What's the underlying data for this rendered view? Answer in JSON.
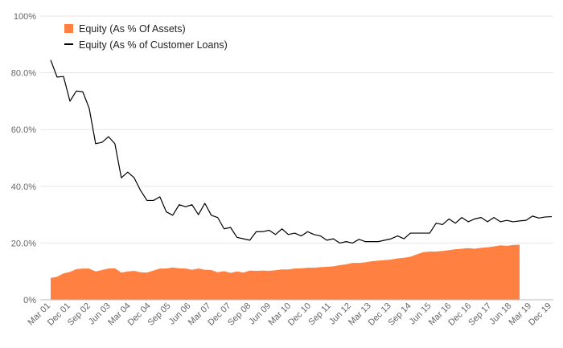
{
  "chart_data": {
    "type": "area",
    "title": "",
    "xlabel": "",
    "ylabel": "",
    "ylim": [
      0,
      100
    ],
    "y_ticks": [
      "0%",
      "20.0%",
      "40.0%",
      "60.0%",
      "80.0%",
      "100%"
    ],
    "x_tick_labels": [
      "Mar 01",
      "Dec 01",
      "Sep 02",
      "Jun 03",
      "Mar 04",
      "Dec 04",
      "Sep 05",
      "Jun 06",
      "Mar 07",
      "Dec 07",
      "Sep 08",
      "Jun 09",
      "Mar 10",
      "Dec 10",
      "Sep 11",
      "Jun 12",
      "Mar 13",
      "Dec 13",
      "Sep 14",
      "Jun 15",
      "Mar 16",
      "Dec 16",
      "Sep 17",
      "Jun 18",
      "Mar 19",
      "Dec 19"
    ],
    "grid": true,
    "legend_position": "top-left",
    "series": [
      {
        "name": "Equity (As % Of Assets)",
        "style": "area",
        "color": "#ff8040",
        "values": [
          7.7,
          8.1,
          9.3,
          9.8,
          10.8,
          11.0,
          11.0,
          10.0,
          10.5,
          11.0,
          11.1,
          9.6,
          10.0,
          10.2,
          9.7,
          9.6,
          10.3,
          11.0,
          11.0,
          11.4,
          11.1,
          11.0,
          10.6,
          11.0,
          10.6,
          10.5,
          9.7,
          10.1,
          9.5,
          10.0,
          9.6,
          10.3,
          10.2,
          10.3,
          10.2,
          10.4,
          10.7,
          10.7,
          11.0,
          11.1,
          11.3,
          11.3,
          11.5,
          11.6,
          11.8,
          12.2,
          12.5,
          13.0,
          13.0,
          13.2,
          13.6,
          13.8,
          14.0,
          14.2,
          14.6,
          14.8,
          15.2,
          16.0,
          16.8,
          17.0,
          17.0,
          17.2,
          17.5,
          17.8,
          18.0,
          18.2,
          18.0,
          18.3,
          18.5,
          18.8,
          19.2,
          19.0
        ],
        "extra_values": [
          19.3,
          19.4
        ]
      },
      {
        "name": "Equity (As % of Customer Loans)",
        "style": "line",
        "color": "#000000",
        "values": [
          84.5,
          78.5,
          78.7,
          70.0,
          73.6,
          73.3,
          67.5,
          55.0,
          55.5,
          57.5,
          55.0,
          43.0,
          45.0,
          43.0,
          38.5,
          35.0,
          35.0,
          36.3,
          31.0,
          29.8,
          33.5,
          32.8,
          33.5,
          30.0,
          34.0,
          29.8,
          29.0,
          25.0,
          25.5,
          22.0,
          21.5,
          21.0,
          24.0,
          24.0,
          24.5,
          23.0,
          25.0,
          23.0,
          23.5,
          22.5,
          24.0,
          23.0,
          22.5,
          21.0,
          21.5,
          20.0,
          20.5,
          20.0,
          21.3,
          20.5,
          20.5,
          20.5,
          21.0,
          21.5,
          22.5,
          21.5,
          23.5,
          23.5,
          23.5,
          23.5,
          27.0,
          26.5,
          28.5,
          27.0,
          29.0,
          27.5,
          28.5,
          29.0,
          27.5,
          29.0,
          27.5,
          28.0
        ],
        "extra_values": [
          27.5,
          27.8,
          28.0,
          29.5,
          28.8,
          29.2,
          29.3
        ]
      }
    ]
  }
}
